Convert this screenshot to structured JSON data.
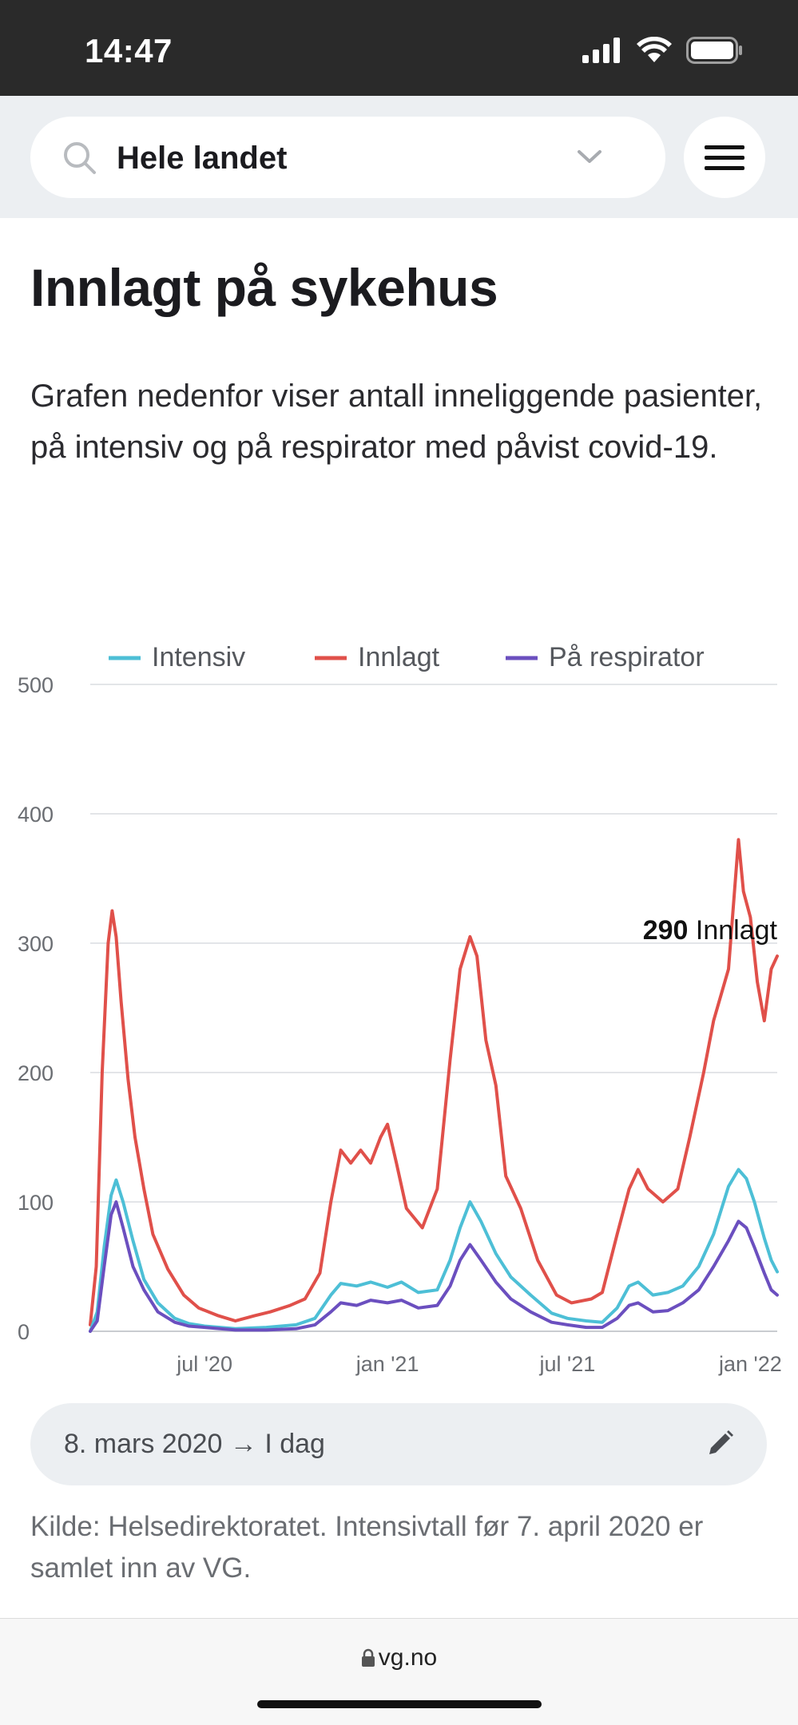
{
  "status_bar": {
    "time": "14:47",
    "icons": [
      "signal-icon",
      "wifi-icon",
      "battery-icon"
    ]
  },
  "search": {
    "value": "Hele landet",
    "icon": "search-icon",
    "dropdown_icon": "chevron-down-icon"
  },
  "menu": {
    "icon": "hamburger-menu-icon"
  },
  "page": {
    "title": "Innlagt på sykehus",
    "intro": "Grafen nedenfor viser antall inneliggende pasienter, på intensiv og på respirator med påvist covid-19."
  },
  "chart_data": {
    "type": "line",
    "title": "",
    "xlabel": "",
    "ylabel": "",
    "ylim": [
      0,
      500
    ],
    "yticks": [
      0,
      100,
      200,
      300,
      400,
      500
    ],
    "xtick_labels": [
      "jul '20",
      "jan '21",
      "jul '21",
      "jan '22"
    ],
    "xtick_dates": [
      "2020-07-01",
      "2021-01-01",
      "2021-07-01",
      "2022-01-01"
    ],
    "xlim": [
      "2020-03-08",
      "2022-01-28"
    ],
    "grid": true,
    "legend_position": "top",
    "annotation": {
      "value": "290",
      "label": "Innlagt"
    },
    "series": [
      {
        "name": "Intensiv",
        "color": "#4dbfd6",
        "points": [
          [
            "2020-03-08",
            0
          ],
          [
            "2020-03-15",
            15
          ],
          [
            "2020-03-22",
            65
          ],
          [
            "2020-03-29",
            105
          ],
          [
            "2020-04-03",
            117
          ],
          [
            "2020-04-10",
            100
          ],
          [
            "2020-04-20",
            70
          ],
          [
            "2020-05-01",
            40
          ],
          [
            "2020-05-15",
            22
          ],
          [
            "2020-06-01",
            10
          ],
          [
            "2020-06-15",
            6
          ],
          [
            "2020-07-01",
            4
          ],
          [
            "2020-08-01",
            2
          ],
          [
            "2020-09-01",
            3
          ],
          [
            "2020-10-01",
            5
          ],
          [
            "2020-10-20",
            10
          ],
          [
            "2020-11-05",
            28
          ],
          [
            "2020-11-15",
            37
          ],
          [
            "2020-12-01",
            35
          ],
          [
            "2020-12-15",
            38
          ],
          [
            "2021-01-01",
            34
          ],
          [
            "2021-01-15",
            38
          ],
          [
            "2021-02-01",
            30
          ],
          [
            "2021-02-20",
            32
          ],
          [
            "2021-03-05",
            55
          ],
          [
            "2021-03-15",
            80
          ],
          [
            "2021-03-25",
            100
          ],
          [
            "2021-04-05",
            85
          ],
          [
            "2021-04-20",
            60
          ],
          [
            "2021-05-05",
            42
          ],
          [
            "2021-05-25",
            28
          ],
          [
            "2021-06-15",
            14
          ],
          [
            "2021-07-01",
            10
          ],
          [
            "2021-07-20",
            8
          ],
          [
            "2021-08-05",
            7
          ],
          [
            "2021-08-20",
            18
          ],
          [
            "2021-09-01",
            35
          ],
          [
            "2021-09-10",
            38
          ],
          [
            "2021-09-25",
            28
          ],
          [
            "2021-10-10",
            30
          ],
          [
            "2021-10-25",
            35
          ],
          [
            "2021-11-10",
            50
          ],
          [
            "2021-11-25",
            75
          ],
          [
            "2021-12-10",
            112
          ],
          [
            "2021-12-20",
            125
          ],
          [
            "2021-12-28",
            118
          ],
          [
            "2022-01-05",
            100
          ],
          [
            "2022-01-15",
            72
          ],
          [
            "2022-01-22",
            55
          ],
          [
            "2022-01-28",
            46
          ]
        ]
      },
      {
        "name": "Innlagt",
        "color": "#e0504a",
        "points": [
          [
            "2020-03-08",
            5
          ],
          [
            "2020-03-14",
            50
          ],
          [
            "2020-03-20",
            200
          ],
          [
            "2020-03-26",
            300
          ],
          [
            "2020-03-30",
            325
          ],
          [
            "2020-04-03",
            305
          ],
          [
            "2020-04-08",
            255
          ],
          [
            "2020-04-15",
            195
          ],
          [
            "2020-04-22",
            150
          ],
          [
            "2020-05-01",
            110
          ],
          [
            "2020-05-10",
            75
          ],
          [
            "2020-05-25",
            48
          ],
          [
            "2020-06-10",
            28
          ],
          [
            "2020-06-25",
            18
          ],
          [
            "2020-07-15",
            12
          ],
          [
            "2020-08-01",
            8
          ],
          [
            "2020-08-20",
            12
          ],
          [
            "2020-09-05",
            15
          ],
          [
            "2020-09-25",
            20
          ],
          [
            "2020-10-10",
            25
          ],
          [
            "2020-10-25",
            45
          ],
          [
            "2020-11-05",
            100
          ],
          [
            "2020-11-15",
            140
          ],
          [
            "2020-11-25",
            130
          ],
          [
            "2020-12-05",
            140
          ],
          [
            "2020-12-15",
            130
          ],
          [
            "2020-12-25",
            150
          ],
          [
            "2021-01-01",
            160
          ],
          [
            "2021-01-10",
            130
          ],
          [
            "2021-01-20",
            95
          ],
          [
            "2021-02-05",
            80
          ],
          [
            "2021-02-20",
            110
          ],
          [
            "2021-03-05",
            210
          ],
          [
            "2021-03-15",
            280
          ],
          [
            "2021-03-25",
            305
          ],
          [
            "2021-04-01",
            290
          ],
          [
            "2021-04-10",
            225
          ],
          [
            "2021-04-20",
            190
          ],
          [
            "2021-04-30",
            120
          ],
          [
            "2021-05-15",
            95
          ],
          [
            "2021-06-01",
            55
          ],
          [
            "2021-06-20",
            28
          ],
          [
            "2021-07-05",
            22
          ],
          [
            "2021-07-25",
            25
          ],
          [
            "2021-08-05",
            30
          ],
          [
            "2021-08-20",
            75
          ],
          [
            "2021-09-01",
            110
          ],
          [
            "2021-09-10",
            125
          ],
          [
            "2021-09-20",
            110
          ],
          [
            "2021-10-05",
            100
          ],
          [
            "2021-10-20",
            110
          ],
          [
            "2021-11-01",
            150
          ],
          [
            "2021-11-15",
            200
          ],
          [
            "2021-11-25",
            240
          ],
          [
            "2021-12-10",
            280
          ],
          [
            "2021-12-20",
            380
          ],
          [
            "2021-12-25",
            340
          ],
          [
            "2022-01-01",
            320
          ],
          [
            "2022-01-08",
            270
          ],
          [
            "2022-01-15",
            240
          ],
          [
            "2022-01-22",
            280
          ],
          [
            "2022-01-28",
            290
          ]
        ]
      },
      {
        "name": "På respirator",
        "color": "#6b4fbf",
        "points": [
          [
            "2020-03-08",
            0
          ],
          [
            "2020-03-15",
            8
          ],
          [
            "2020-03-22",
            50
          ],
          [
            "2020-03-29",
            90
          ],
          [
            "2020-04-03",
            100
          ],
          [
            "2020-04-10",
            80
          ],
          [
            "2020-04-20",
            50
          ],
          [
            "2020-05-01",
            32
          ],
          [
            "2020-05-15",
            15
          ],
          [
            "2020-06-01",
            7
          ],
          [
            "2020-06-15",
            4
          ],
          [
            "2020-07-01",
            3
          ],
          [
            "2020-08-01",
            1
          ],
          [
            "2020-09-01",
            1
          ],
          [
            "2020-10-01",
            2
          ],
          [
            "2020-10-20",
            5
          ],
          [
            "2020-11-05",
            15
          ],
          [
            "2020-11-15",
            22
          ],
          [
            "2020-12-01",
            20
          ],
          [
            "2020-12-15",
            24
          ],
          [
            "2021-01-01",
            22
          ],
          [
            "2021-01-15",
            24
          ],
          [
            "2021-02-01",
            18
          ],
          [
            "2021-02-20",
            20
          ],
          [
            "2021-03-05",
            35
          ],
          [
            "2021-03-15",
            55
          ],
          [
            "2021-03-25",
            67
          ],
          [
            "2021-04-05",
            55
          ],
          [
            "2021-04-20",
            38
          ],
          [
            "2021-05-05",
            25
          ],
          [
            "2021-05-25",
            15
          ],
          [
            "2021-06-15",
            7
          ],
          [
            "2021-07-01",
            5
          ],
          [
            "2021-07-20",
            3
          ],
          [
            "2021-08-05",
            3
          ],
          [
            "2021-08-20",
            10
          ],
          [
            "2021-09-01",
            20
          ],
          [
            "2021-09-10",
            22
          ],
          [
            "2021-09-25",
            15
          ],
          [
            "2021-10-10",
            16
          ],
          [
            "2021-10-25",
            22
          ],
          [
            "2021-11-10",
            32
          ],
          [
            "2021-11-25",
            50
          ],
          [
            "2021-12-10",
            70
          ],
          [
            "2021-12-20",
            85
          ],
          [
            "2021-12-28",
            80
          ],
          [
            "2022-01-05",
            65
          ],
          [
            "2022-01-15",
            45
          ],
          [
            "2022-01-22",
            32
          ],
          [
            "2022-01-28",
            28
          ]
        ]
      }
    ]
  },
  "date_range": {
    "label": "8. mars 2020 → I dag",
    "edit_icon": "pencil-icon"
  },
  "source_note": "Kilde: Helsedirektoratet. Intensivtall før 7. april 2020 er samlet inn av VG.",
  "browser": {
    "url": "vg.no",
    "lock_icon": "lock-icon"
  }
}
